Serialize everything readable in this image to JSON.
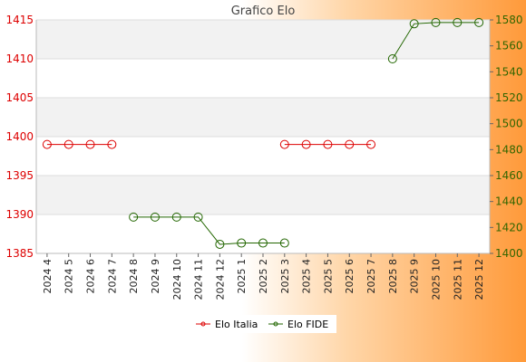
{
  "chart_data": {
    "type": "line",
    "title": "Grafico Elo",
    "categories": [
      "2024 4",
      "2024 5",
      "2024 6",
      "2024 7",
      "2024 8",
      "2024 9",
      "2024 10",
      "2024 11",
      "2024 12",
      "2025 1",
      "2025 2",
      "2025 3",
      "2025 4",
      "2025 5",
      "2025 6",
      "2025 7",
      "2025 8",
      "2025 9",
      "2025 10",
      "2025 11",
      "2025 12"
    ],
    "y_left": {
      "range": [
        1385,
        1415
      ],
      "ticks": [
        1385,
        1390,
        1395,
        1400,
        1405,
        1410,
        1415
      ]
    },
    "y_right": {
      "range": [
        1400,
        1580
      ],
      "ticks": [
        1400,
        1420,
        1440,
        1460,
        1480,
        1500,
        1520,
        1540,
        1560,
        1580
      ]
    },
    "series": [
      {
        "name": "Elo Italia",
        "axis": "left",
        "color": "#dd0000",
        "values": [
          1399,
          1399,
          1399,
          1399,
          null,
          null,
          null,
          null,
          null,
          null,
          null,
          1399,
          1399,
          1399,
          1399,
          1399,
          null,
          null,
          null,
          null,
          null
        ]
      },
      {
        "name": "Elo FIDE",
        "axis": "right",
        "color": "#226600",
        "values": [
          null,
          null,
          null,
          null,
          1428,
          1428,
          1428,
          1428,
          1407,
          1408,
          1408,
          1408,
          null,
          null,
          null,
          null,
          1550,
          1577,
          1578,
          1578,
          1578
        ]
      }
    ],
    "grid": true,
    "band_colors": [
      "#f2f2f2",
      "#ffffff"
    ],
    "legend": "bottom-center"
  }
}
